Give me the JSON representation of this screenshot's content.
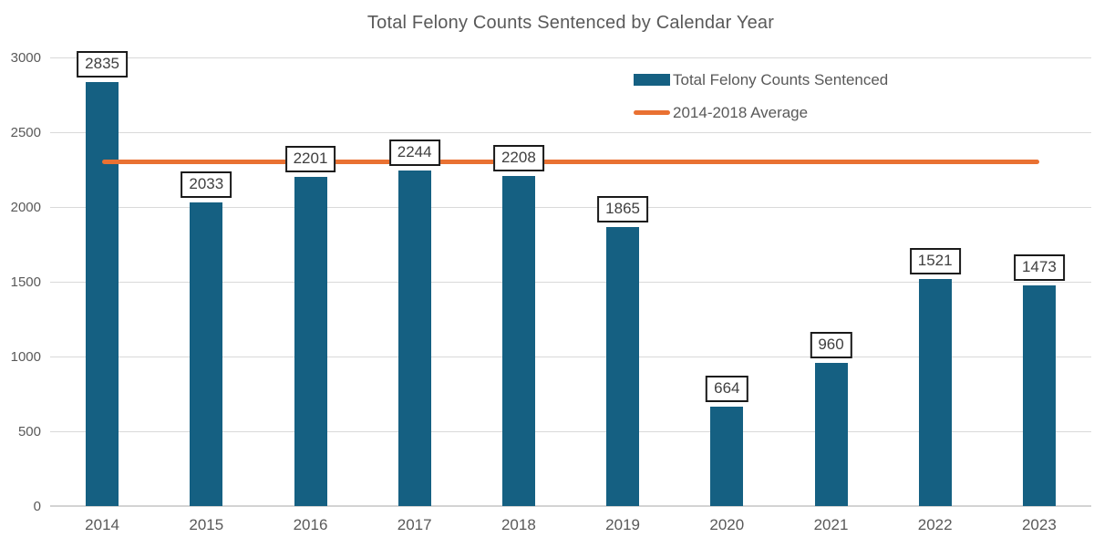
{
  "chart_data": {
    "type": "bar",
    "title": "Total Felony Counts Sentenced by Calendar Year",
    "categories": [
      "2014",
      "2015",
      "2016",
      "2017",
      "2018",
      "2019",
      "2020",
      "2021",
      "2022",
      "2023"
    ],
    "series": [
      {
        "name": "Total Felony Counts Sentenced",
        "type": "bar",
        "color": "#156082",
        "values": [
          2835,
          2033,
          2201,
          2244,
          2208,
          1865,
          664,
          960,
          1521,
          1473
        ],
        "data_labels": true
      },
      {
        "name": "2014-2018 Average",
        "type": "line",
        "color": "#E97132",
        "value": 2304.2,
        "span_categories": [
          "2014",
          "2023"
        ]
      }
    ],
    "xlabel": "",
    "ylabel": "",
    "ylim": [
      0,
      3000
    ],
    "yticks": [
      0,
      500,
      1000,
      1500,
      2000,
      2500,
      3000
    ],
    "grid": "horizontal",
    "legend_position": "top-right"
  },
  "colors": {
    "bar": "#156082",
    "line": "#E97132",
    "text": "#595959",
    "label_text": "#3f3f3f",
    "label_border": "#1a1a1a",
    "gridline": "#d9d9d9",
    "background": "#ffffff"
  }
}
